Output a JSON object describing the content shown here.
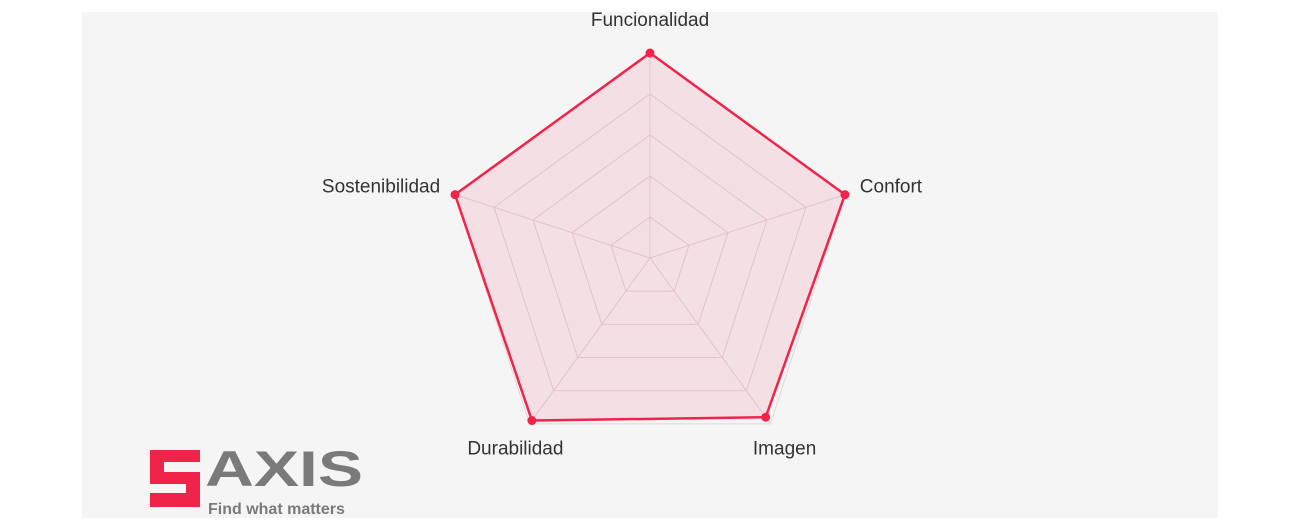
{
  "chart_data": {
    "type": "radar",
    "categories": [
      "Funcionalidad",
      "Confort",
      "Imagen",
      "Durabilidad",
      "Sostenibilidad"
    ],
    "values": [
      5,
      5,
      4.8,
      4.9,
      5
    ],
    "color": "#f0244a",
    "rlim": [
      0,
      5
    ],
    "rticks": [
      1,
      2,
      3,
      4,
      5
    ],
    "grid": true
  },
  "logo": {
    "text": "AXIS",
    "tagline": "Find what matters"
  }
}
